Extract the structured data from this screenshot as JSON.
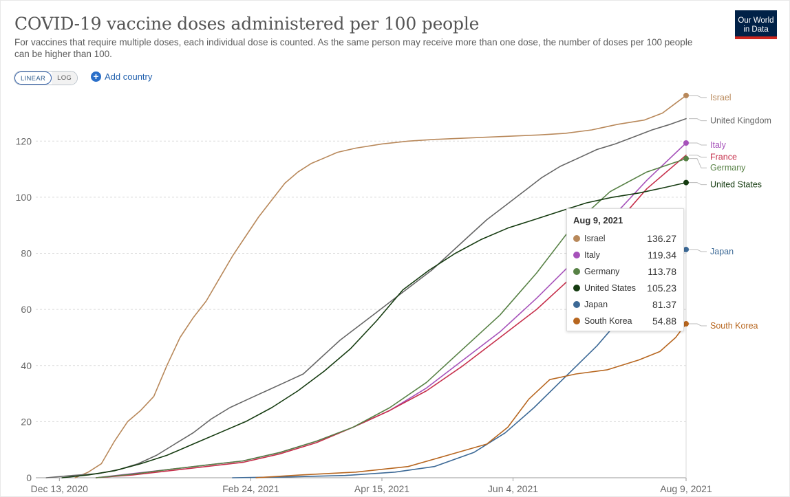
{
  "header": {
    "title": "COVID-19 vaccine doses administered per 100 people",
    "subtitle": "For vaccines that require multiple doses, each individual dose is counted. As the same person may receive more than one dose, the number of doses per 100 people can be higher than 100."
  },
  "logo": {
    "line1": "Our World",
    "line2": "in Data",
    "bg": "#002147",
    "accent": "#ce261e"
  },
  "controls": {
    "scale_options": [
      "LINEAR",
      "LOG"
    ],
    "selected_scale": "LINEAR",
    "add_country_label": "Add country",
    "add_icon": "plus-circle-icon"
  },
  "tooltip": {
    "date": "Aug 9, 2021",
    "rows": [
      {
        "name": "Israel",
        "value": "136.27",
        "color": "#b8885a"
      },
      {
        "name": "Italy",
        "value": "119.34",
        "color": "#a652ba"
      },
      {
        "name": "Germany",
        "value": "113.78",
        "color": "#578145"
      },
      {
        "name": "United States",
        "value": "105.23",
        "color": "#153b10"
      },
      {
        "name": "Japan",
        "value": "81.37",
        "color": "#3c6996"
      },
      {
        "name": "South Korea",
        "value": "54.88",
        "color": "#b7661f"
      }
    ]
  },
  "chart_data": {
    "type": "line",
    "title": "COVID-19 vaccine doses administered per 100 people",
    "xlabel": "",
    "ylabel": "",
    "x_range": [
      "2020-12-04",
      "2021-08-09"
    ],
    "ylim": [
      0,
      136
    ],
    "y_ticks": [
      0,
      20,
      40,
      60,
      80,
      100,
      120
    ],
    "x_ticks": [
      {
        "date": "2020-12-13",
        "label": "Dec 13, 2020"
      },
      {
        "date": "2021-02-24",
        "label": "Feb 24, 2021"
      },
      {
        "date": "2021-04-15",
        "label": "Apr 15, 2021"
      },
      {
        "date": "2021-06-04",
        "label": "Jun 4, 2021"
      },
      {
        "date": "2021-08-09",
        "label": "Aug 9, 2021"
      }
    ],
    "grid": "horizontal-dashed",
    "legend": "right-end-labels",
    "series": [
      {
        "name": "Israel",
        "color": "#b8885a",
        "end_dot": true,
        "points": [
          [
            "2020-12-19",
            0
          ],
          [
            "2020-12-24",
            2
          ],
          [
            "2020-12-29",
            5
          ],
          [
            "2021-01-03",
            13
          ],
          [
            "2021-01-08",
            20
          ],
          [
            "2021-01-13",
            24
          ],
          [
            "2021-01-18",
            29
          ],
          [
            "2021-01-23",
            40
          ],
          [
            "2021-01-28",
            50
          ],
          [
            "2021-02-02",
            57
          ],
          [
            "2021-02-07",
            63
          ],
          [
            "2021-02-12",
            71
          ],
          [
            "2021-02-17",
            79
          ],
          [
            "2021-02-22",
            86
          ],
          [
            "2021-02-27",
            93
          ],
          [
            "2021-03-04",
            99
          ],
          [
            "2021-03-09",
            105
          ],
          [
            "2021-03-14",
            109
          ],
          [
            "2021-03-19",
            112
          ],
          [
            "2021-03-24",
            114
          ],
          [
            "2021-03-29",
            116
          ],
          [
            "2021-04-05",
            117.5
          ],
          [
            "2021-04-15",
            119
          ],
          [
            "2021-04-25",
            120
          ],
          [
            "2021-05-05",
            120.6
          ],
          [
            "2021-05-15",
            121
          ],
          [
            "2021-05-25",
            121.4
          ],
          [
            "2021-06-04",
            121.8
          ],
          [
            "2021-06-14",
            122.2
          ],
          [
            "2021-06-24",
            122.8
          ],
          [
            "2021-07-04",
            124
          ],
          [
            "2021-07-14",
            126
          ],
          [
            "2021-07-24",
            127.5
          ],
          [
            "2021-07-31",
            130
          ],
          [
            "2021-08-05",
            133.5
          ],
          [
            "2021-08-09",
            136.27
          ]
        ]
      },
      {
        "name": "United Kingdom",
        "color": "#666666",
        "end_dot": false,
        "points": [
          [
            "2020-12-08",
            0
          ],
          [
            "2020-12-18",
            0.8
          ],
          [
            "2020-12-28",
            1.5
          ],
          [
            "2021-01-05",
            3
          ],
          [
            "2021-01-12",
            5
          ],
          [
            "2021-01-19",
            8
          ],
          [
            "2021-01-26",
            12
          ],
          [
            "2021-02-02",
            16
          ],
          [
            "2021-02-09",
            21
          ],
          [
            "2021-02-16",
            25
          ],
          [
            "2021-02-23",
            28
          ],
          [
            "2021-03-02",
            31
          ],
          [
            "2021-03-09",
            34
          ],
          [
            "2021-03-16",
            37
          ],
          [
            "2021-03-23",
            43
          ],
          [
            "2021-03-30",
            49
          ],
          [
            "2021-04-06",
            54
          ],
          [
            "2021-04-13",
            59
          ],
          [
            "2021-04-20",
            64
          ],
          [
            "2021-04-27",
            69
          ],
          [
            "2021-05-04",
            74
          ],
          [
            "2021-05-11",
            80
          ],
          [
            "2021-05-18",
            86
          ],
          [
            "2021-05-25",
            92
          ],
          [
            "2021-06-01",
            97
          ],
          [
            "2021-06-08",
            102
          ],
          [
            "2021-06-15",
            107
          ],
          [
            "2021-06-22",
            111
          ],
          [
            "2021-06-29",
            114
          ],
          [
            "2021-07-06",
            117
          ],
          [
            "2021-07-13",
            119
          ],
          [
            "2021-07-20",
            121.5
          ],
          [
            "2021-07-27",
            124
          ],
          [
            "2021-08-03",
            126
          ],
          [
            "2021-08-09",
            128
          ]
        ]
      },
      {
        "name": "Italy",
        "color": "#a652ba",
        "end_dot": true,
        "points": [
          [
            "2020-12-27",
            0
          ],
          [
            "2021-01-10",
            1.5
          ],
          [
            "2021-01-24",
            3
          ],
          [
            "2021-02-07",
            4.5
          ],
          [
            "2021-02-21",
            6
          ],
          [
            "2021-03-07",
            9
          ],
          [
            "2021-03-21",
            13
          ],
          [
            "2021-04-04",
            18
          ],
          [
            "2021-04-18",
            24
          ],
          [
            "2021-05-02",
            32
          ],
          [
            "2021-05-16",
            42
          ],
          [
            "2021-05-30",
            52
          ],
          [
            "2021-06-13",
            64
          ],
          [
            "2021-06-27",
            77
          ],
          [
            "2021-07-11",
            92
          ],
          [
            "2021-07-25",
            106
          ],
          [
            "2021-08-09",
            119.34
          ]
        ]
      },
      {
        "name": "France",
        "color": "#c62f4b",
        "end_dot": false,
        "points": [
          [
            "2020-12-27",
            0
          ],
          [
            "2021-01-10",
            1
          ],
          [
            "2021-01-24",
            2.5
          ],
          [
            "2021-02-07",
            4
          ],
          [
            "2021-02-21",
            5.5
          ],
          [
            "2021-03-07",
            8.5
          ],
          [
            "2021-03-21",
            12.5
          ],
          [
            "2021-04-04",
            18
          ],
          [
            "2021-04-18",
            24
          ],
          [
            "2021-05-02",
            31
          ],
          [
            "2021-05-16",
            40
          ],
          [
            "2021-05-30",
            50
          ],
          [
            "2021-06-13",
            60
          ],
          [
            "2021-06-27",
            72
          ],
          [
            "2021-07-11",
            88
          ],
          [
            "2021-07-25",
            103
          ],
          [
            "2021-08-09",
            115
          ]
        ]
      },
      {
        "name": "Germany",
        "color": "#578145",
        "end_dot": true,
        "points": [
          [
            "2020-12-27",
            0
          ],
          [
            "2021-01-10",
            1.3
          ],
          [
            "2021-01-24",
            3
          ],
          [
            "2021-02-07",
            4.5
          ],
          [
            "2021-02-21",
            6
          ],
          [
            "2021-03-07",
            9
          ],
          [
            "2021-03-21",
            13
          ],
          [
            "2021-04-04",
            18
          ],
          [
            "2021-04-18",
            25
          ],
          [
            "2021-05-02",
            34
          ],
          [
            "2021-05-16",
            46
          ],
          [
            "2021-05-30",
            58
          ],
          [
            "2021-06-13",
            73
          ],
          [
            "2021-06-27",
            90
          ],
          [
            "2021-07-11",
            102
          ],
          [
            "2021-07-25",
            109
          ],
          [
            "2021-08-09",
            113.78
          ]
        ]
      },
      {
        "name": "United States",
        "color": "#153b10",
        "end_dot": true,
        "points": [
          [
            "2020-12-14",
            0
          ],
          [
            "2020-12-24",
            1
          ],
          [
            "2021-01-03",
            2.5
          ],
          [
            "2021-01-13",
            5
          ],
          [
            "2021-01-23",
            8
          ],
          [
            "2021-02-02",
            12
          ],
          [
            "2021-02-12",
            16
          ],
          [
            "2021-02-22",
            20
          ],
          [
            "2021-03-04",
            25
          ],
          [
            "2021-03-14",
            31
          ],
          [
            "2021-03-24",
            38
          ],
          [
            "2021-04-03",
            46
          ],
          [
            "2021-04-13",
            56
          ],
          [
            "2021-04-23",
            67
          ],
          [
            "2021-05-03",
            74
          ],
          [
            "2021-05-13",
            80
          ],
          [
            "2021-05-23",
            85
          ],
          [
            "2021-06-02",
            89
          ],
          [
            "2021-06-12",
            92
          ],
          [
            "2021-06-22",
            95
          ],
          [
            "2021-07-02",
            98
          ],
          [
            "2021-07-12",
            100
          ],
          [
            "2021-07-22",
            101.5
          ],
          [
            "2021-08-01",
            103.5
          ],
          [
            "2021-08-09",
            105.23
          ]
        ]
      },
      {
        "name": "Japan",
        "color": "#3c6996",
        "end_dot": true,
        "points": [
          [
            "2021-02-17",
            0
          ],
          [
            "2021-03-10",
            0.3
          ],
          [
            "2021-04-01",
            0.8
          ],
          [
            "2021-04-20",
            2
          ],
          [
            "2021-05-05",
            4
          ],
          [
            "2021-05-20",
            9
          ],
          [
            "2021-06-01",
            16
          ],
          [
            "2021-06-12",
            25
          ],
          [
            "2021-06-24",
            36
          ],
          [
            "2021-07-06",
            47
          ],
          [
            "2021-07-18",
            60
          ],
          [
            "2021-07-30",
            72
          ],
          [
            "2021-08-09",
            81.37
          ]
        ]
      },
      {
        "name": "South Korea",
        "color": "#b7661f",
        "end_dot": true,
        "points": [
          [
            "2021-02-26",
            0
          ],
          [
            "2021-03-15",
            1
          ],
          [
            "2021-04-05",
            2
          ],
          [
            "2021-04-25",
            4
          ],
          [
            "2021-05-10",
            8
          ],
          [
            "2021-05-25",
            12
          ],
          [
            "2021-06-02",
            18
          ],
          [
            "2021-06-10",
            28
          ],
          [
            "2021-06-18",
            35
          ],
          [
            "2021-06-28",
            37
          ],
          [
            "2021-07-10",
            38.5
          ],
          [
            "2021-07-22",
            42
          ],
          [
            "2021-07-30",
            45
          ],
          [
            "2021-08-05",
            50
          ],
          [
            "2021-08-09",
            54.88
          ]
        ]
      }
    ],
    "end_labels": [
      {
        "name": "Israel",
        "color": "#b8885a"
      },
      {
        "name": "United Kingdom",
        "color": "#666666"
      },
      {
        "name": "Italy",
        "color": "#a652ba"
      },
      {
        "name": "France",
        "color": "#c62f4b"
      },
      {
        "name": "Germany",
        "color": "#578145"
      },
      {
        "name": "United States",
        "color": "#153b10"
      },
      {
        "name": "Japan",
        "color": "#3c6996"
      },
      {
        "name": "South Korea",
        "color": "#b7661f"
      }
    ]
  }
}
